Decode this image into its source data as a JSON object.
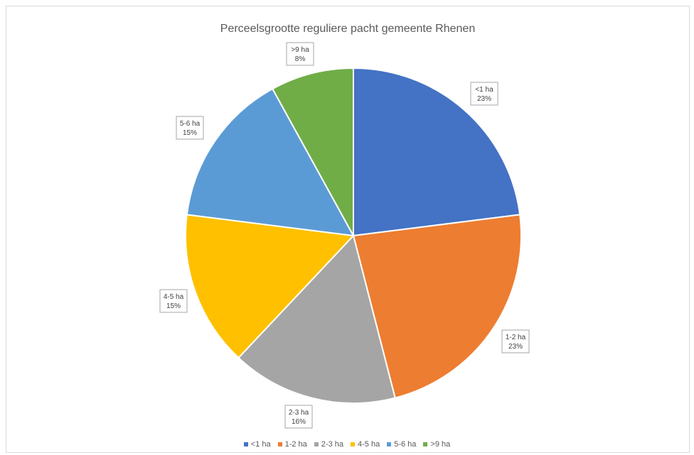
{
  "chart_data": {
    "type": "pie",
    "title": "Perceelsgrootte reguliere pacht gemeente Rhenen",
    "categories": [
      "<1 ha",
      "1-2 ha",
      "2-3 ha",
      "4-5 ha",
      "5-6 ha",
      ">9 ha"
    ],
    "values": [
      23,
      23,
      16,
      15,
      15,
      8
    ],
    "value_labels": [
      "23%",
      "23%",
      "16%",
      "15%",
      "15%",
      "8%"
    ],
    "colors": [
      "#4472c4",
      "#ed7d31",
      "#a5a5a5",
      "#ffc000",
      "#5b9bd5",
      "#70ad47"
    ],
    "legend_position": "bottom",
    "data_labels": "callouts"
  }
}
